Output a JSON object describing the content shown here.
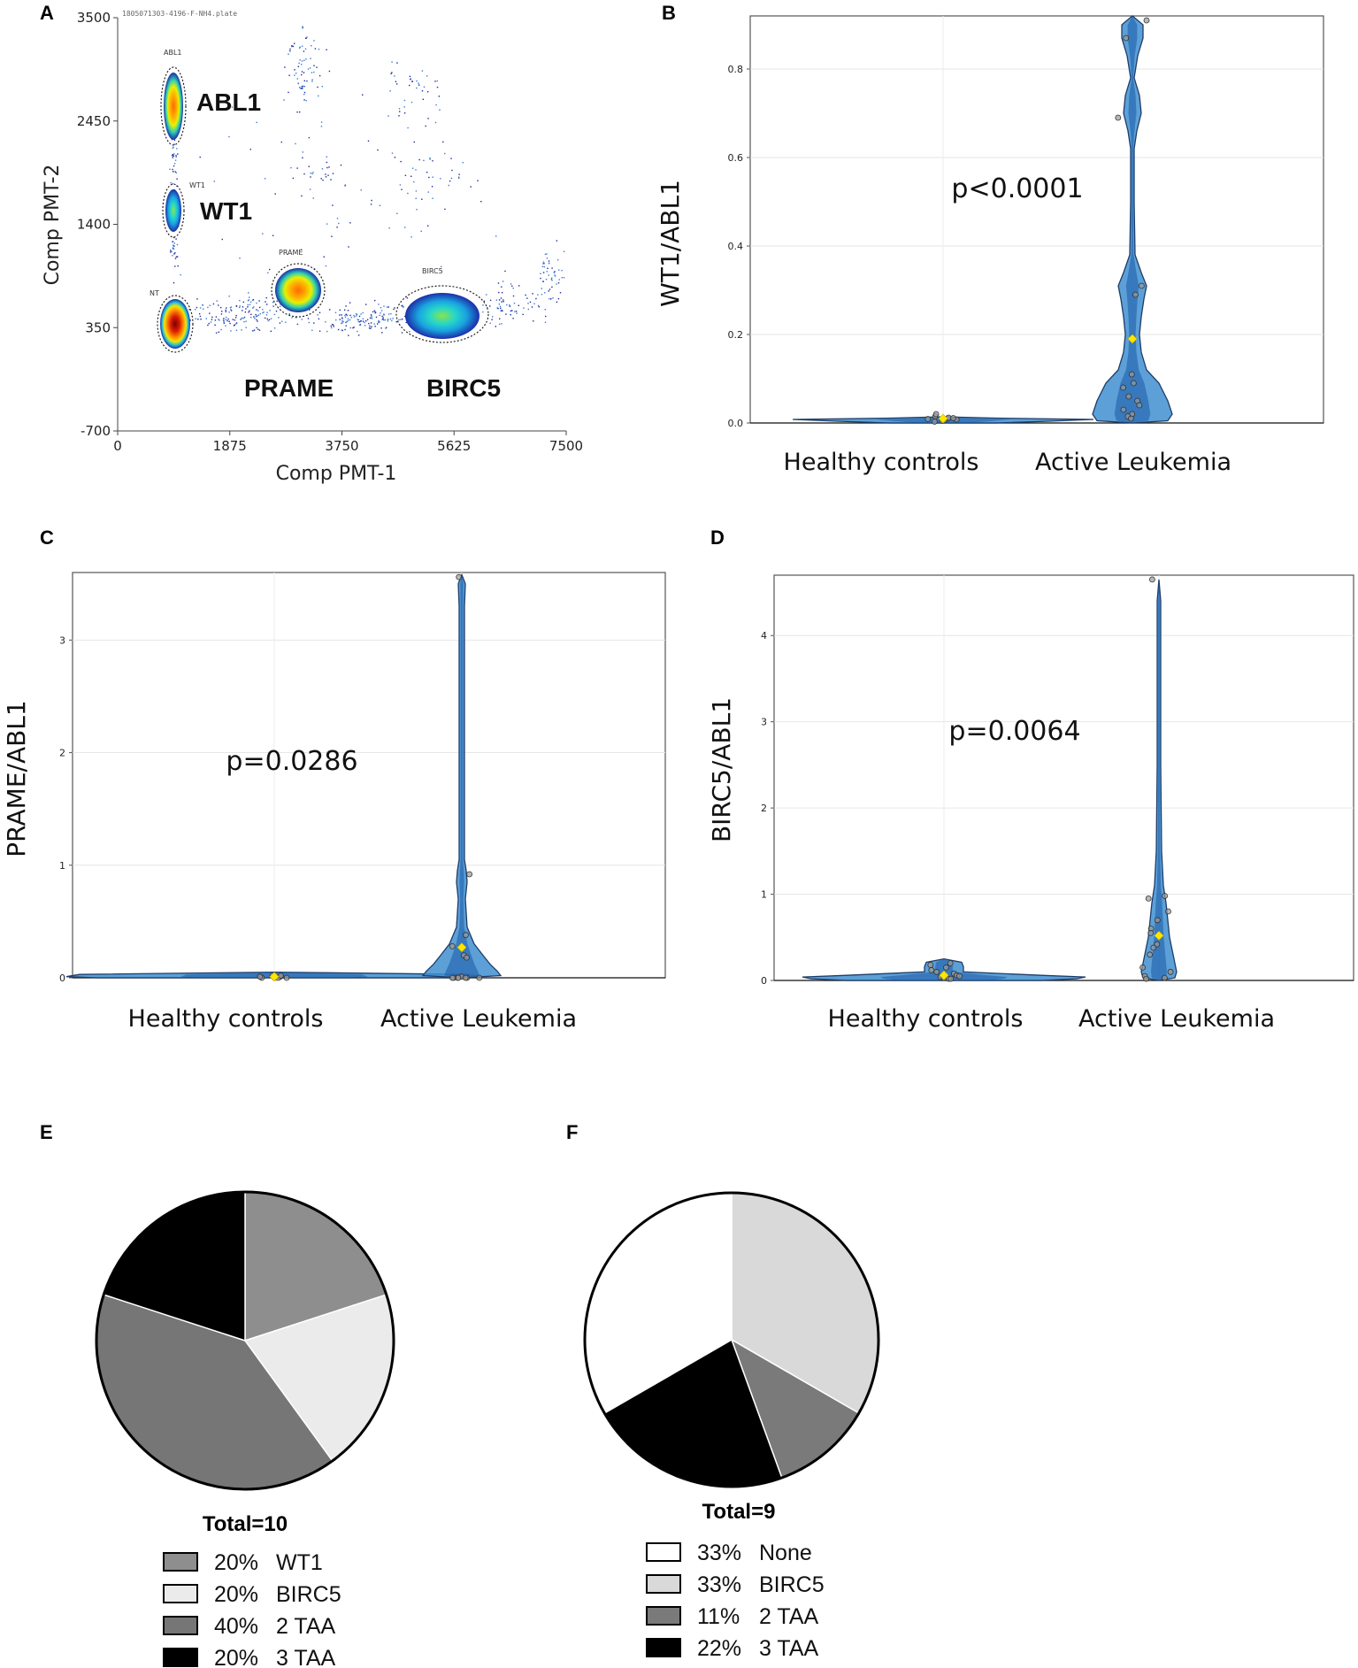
{
  "panels": {
    "A": "A",
    "B": "B",
    "C": "C",
    "D": "D",
    "E": "E",
    "F": "F"
  },
  "chart_data": [
    {
      "panel": "A",
      "type": "scatter",
      "title": "1805071303-4196-F-NH4.plate",
      "xlabel": "Comp PMT-1",
      "ylabel": "Comp PMT-2",
      "xlim": [
        0,
        7500
      ],
      "ylim": [
        -700,
        3500
      ],
      "xticks": [
        0,
        1875,
        3750,
        5625,
        7500
      ],
      "yticks": [
        -700,
        350,
        1400,
        2450,
        3500
      ],
      "x_tick_labels": [
        "0",
        "1875",
        "3750",
        "5625",
        "7500"
      ],
      "y_tick_labels": [
        "-700",
        "350",
        "1400",
        "2450",
        "3500"
      ],
      "populations": [
        {
          "gate": "ABL1",
          "label": "ABL1",
          "x": 900,
          "y": 2650
        },
        {
          "gate": "WT1",
          "label": "WT1",
          "x": 900,
          "y": 1520
        },
        {
          "gate": "NT",
          "label": "",
          "x": 950,
          "y": 420
        },
        {
          "gate": "PRAME",
          "label": "PRAME",
          "x": 3000,
          "y": 680
        },
        {
          "gate": "BIRC5",
          "label": "BIRC5",
          "x": 5300,
          "y": 480
        }
      ]
    },
    {
      "panel": "B",
      "type": "violin",
      "ylabel": "WT1/ABL1",
      "categories": [
        "Healthy controls",
        "Active Leukemia"
      ],
      "ylim": [
        0,
        0.92
      ],
      "yticks": [
        0.0,
        0.2,
        0.4,
        0.6,
        0.8
      ],
      "y_tick_labels": [
        "0.0",
        "0.2",
        "0.4",
        "0.6",
        "0.8"
      ],
      "annotation": "p<0.0001",
      "mean": [
        0.01,
        0.19
      ],
      "points": [
        [
          0.005,
          0.01,
          0.012,
          0.008,
          0.015,
          0.02,
          0.003,
          0.006,
          0.009,
          0.011
        ],
        [
          0.91,
          0.87,
          0.69,
          0.31,
          0.29,
          0.11,
          0.09,
          0.08,
          0.06,
          0.05,
          0.04,
          0.03,
          0.02,
          0.015,
          0.01
        ]
      ]
    },
    {
      "panel": "C",
      "type": "violin",
      "ylabel": "PRAME/ABL1",
      "categories": [
        "Healthy controls",
        "Active Leukemia"
      ],
      "ylim": [
        0,
        3.6
      ],
      "yticks": [
        0,
        1,
        2,
        3
      ],
      "y_tick_labels": [
        "0",
        "1",
        "2",
        "3"
      ],
      "annotation": "p=0.0286",
      "mean": [
        0.01,
        0.27
      ],
      "points": [
        [
          0.0,
          0.01,
          0.02,
          0.0,
          0.01,
          0.0,
          0.02,
          0.0
        ],
        [
          3.56,
          0.92,
          0.38,
          0.28,
          0.2,
          0.18,
          0.01,
          0.0,
          0.0,
          0.0,
          0.0,
          0.0,
          0.0,
          0.0
        ]
      ]
    },
    {
      "panel": "D",
      "type": "violin",
      "ylabel": "BIRC5/ABL1",
      "categories": [
        "Healthy controls",
        "Active Leukemia"
      ],
      "ylim": [
        0,
        4.7
      ],
      "yticks": [
        0,
        1,
        2,
        3,
        4
      ],
      "y_tick_labels": [
        "0",
        "1",
        "2",
        "3",
        "4"
      ],
      "annotation": "p=0.0064",
      "mean": [
        0.06,
        0.52
      ],
      "points": [
        [
          0.2,
          0.18,
          0.15,
          0.12,
          0.1,
          0.08,
          0.06,
          0.05,
          0.04,
          0.03,
          0.02,
          0.02
        ],
        [
          4.65,
          0.98,
          0.95,
          0.8,
          0.7,
          0.6,
          0.55,
          0.42,
          0.38,
          0.3,
          0.15,
          0.1,
          0.05,
          0.03,
          0.02
        ]
      ]
    },
    {
      "panel": "E",
      "type": "pie",
      "total_label": "Total=10",
      "slices": [
        {
          "label": "WT1",
          "pct_label": "20%",
          "value": 20,
          "color": "#8e8e8e"
        },
        {
          "label": "BIRC5",
          "pct_label": "20%",
          "value": 20,
          "color": "#ebebeb"
        },
        {
          "label": "2 TAA",
          "pct_label": "40%",
          "value": 40,
          "color": "#767676"
        },
        {
          "label": "3 TAA",
          "pct_label": "20%",
          "value": 20,
          "color": "#000000"
        }
      ]
    },
    {
      "panel": "F",
      "type": "pie",
      "total_label": "Total=9",
      "slices": [
        {
          "label": "BIRC5",
          "pct_label": "33%",
          "value": 33.33,
          "color": "#d9d9d9"
        },
        {
          "label": "2 TAA",
          "pct_label": "11%",
          "value": 11.11,
          "color": "#7a7a7a"
        },
        {
          "label": "3 TAA",
          "pct_label": "22%",
          "value": 22.22,
          "color": "#000000"
        },
        {
          "label": "None",
          "pct_label": "33%",
          "value": 33.33,
          "color": "#ffffff"
        }
      ],
      "legend_order": [
        "None",
        "BIRC5",
        "2 TAA",
        "3 TAA"
      ]
    }
  ]
}
